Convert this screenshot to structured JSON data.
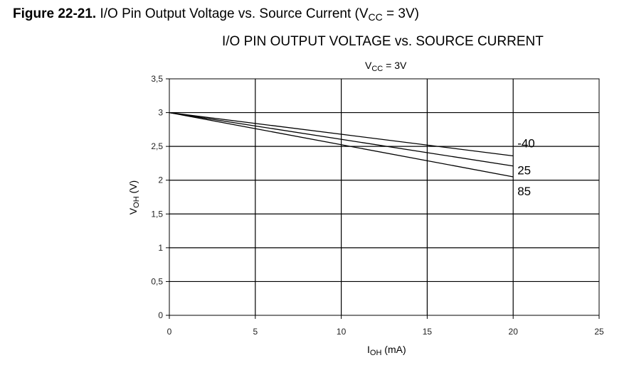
{
  "figure_caption": {
    "number": "Figure 22-21.",
    "text_before": " I/O Pin Output Voltage vs. Source Current (V",
    "subscript": "CC",
    "text_after": " = 3V)"
  },
  "chart_data": {
    "type": "line",
    "title": "I/O PIN OUTPUT VOLTAGE vs. SOURCE CURRENT",
    "subtitle": {
      "main": "V",
      "sub": "CC",
      "rest": " = 3V"
    },
    "xlabel": {
      "main": "I",
      "sub": "OH",
      "rest": " (mA)"
    },
    "ylabel": {
      "main": "V",
      "sub": "OH",
      "rest": " (V)"
    },
    "xlim": [
      0,
      25
    ],
    "ylim": [
      0,
      3.5
    ],
    "xticks": [
      0,
      5,
      10,
      15,
      20,
      25
    ],
    "xtick_labels": [
      "0",
      "5",
      "10",
      "15",
      "20",
      "25"
    ],
    "yticks": [
      0,
      0.5,
      1,
      1.5,
      2,
      2.5,
      3,
      3.5
    ],
    "ytick_labels": [
      "0",
      "0,5",
      "1",
      "1,5",
      "2",
      "2,5",
      "3",
      "3,5"
    ],
    "grid": true,
    "series": [
      {
        "name": "-40",
        "x": [
          0,
          20
        ],
        "y": [
          3.0,
          2.36
        ]
      },
      {
        "name": "25",
        "x": [
          0,
          20
        ],
        "y": [
          3.0,
          2.21
        ]
      },
      {
        "name": "85",
        "x": [
          0,
          20
        ],
        "y": [
          3.0,
          2.05
        ]
      }
    ]
  }
}
